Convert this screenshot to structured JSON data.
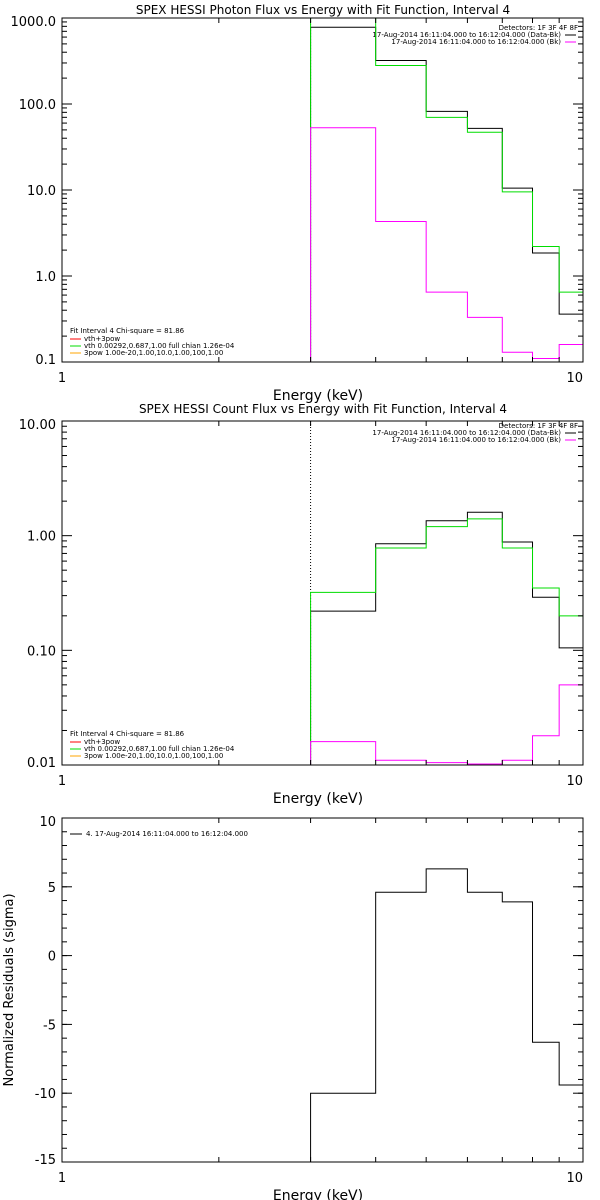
{
  "chart_data": [
    {
      "type": "line",
      "title": "SPEX HESSI Photon Flux vs Energy with Fit Function, Interval 4",
      "xlabel": "Energy (keV)",
      "ylabel": "",
      "xscale": "log",
      "yscale": "log",
      "xlim": [
        1,
        10
      ],
      "ylim": [
        0.1,
        1000
      ],
      "x_ticks": [
        1,
        10
      ],
      "x_tick_labels": [
        "1",
        "10"
      ],
      "y_ticks": [
        0.1,
        1,
        10,
        100,
        1000
      ],
      "y_tick_labels": [
        "0.1",
        "1.0",
        "10.0",
        "100.0",
        "1000.0"
      ],
      "vline": {
        "x": 3.0,
        "color": "#00c000",
        "dotted": true
      },
      "series": [
        {
          "color": "#000000",
          "edges": [
            3.0,
            4.0,
            5.0,
            6.0,
            7.0,
            8.0,
            9.0,
            10.0
          ],
          "values": [
            780,
            320,
            82,
            52,
            10.5,
            1.85,
            0.36
          ]
        },
        {
          "color": "#00dd00",
          "edges": [
            3.0,
            4.0,
            5.0,
            6.0,
            7.0,
            8.0,
            9.0,
            10.0
          ],
          "values": [
            1000,
            280,
            70,
            47,
            9.5,
            2.2,
            0.65
          ]
        },
        {
          "color": "#ff00ff",
          "edges": [
            3.0,
            4.0,
            5.0,
            6.0,
            7.0,
            8.0,
            9.0,
            10.0
          ],
          "values": [
            53,
            4.3,
            0.65,
            0.33,
            0.13,
            0.11,
            0.16
          ]
        }
      ],
      "legend_top": {
        "header": "Detectors: 1F 3F 4F 8F",
        "entries": [
          {
            "text": "17-Aug-2014 16:11:04.000 to 16:12:04.000 (Data-Bk)",
            "color": "#000000"
          },
          {
            "text": "17-Aug-2014 16:11:04.000 to 16:12:04.000 (Bk)",
            "color": "#ff00ff"
          }
        ]
      },
      "legend_bottom": {
        "header": "Fit Interval 4   Chi-square = 81.86",
        "entries": [
          {
            "text": "vth+3pow",
            "color": "#ff0000"
          },
          {
            "text": "vth 0.00292,0.687,1.00  full chian 1.26e-04",
            "color": "#00dd00"
          },
          {
            "text": "3pow 1.00e-20,1.00,10.0,1.00,100,1.00",
            "color": "#ffa500"
          }
        ]
      }
    },
    {
      "type": "line",
      "title": "SPEX HESSI Count Flux vs Energy with Fit Function, Interval 4",
      "xlabel": "Energy (keV)",
      "ylabel": "",
      "xscale": "log",
      "yscale": "log",
      "xlim": [
        1,
        10
      ],
      "ylim": [
        0.01,
        10
      ],
      "x_ticks": [
        1,
        10
      ],
      "x_tick_labels": [
        "1",
        "10"
      ],
      "y_ticks": [
        0.01,
        0.1,
        1,
        10
      ],
      "y_tick_labels": [
        "0.01",
        "0.10",
        "1.00",
        "10.00"
      ],
      "vline": {
        "x": 3.0,
        "color": "#000000",
        "dotted": true
      },
      "series": [
        {
          "color": "#000000",
          "edges": [
            3.0,
            4.0,
            5.0,
            6.0,
            7.0,
            8.0,
            9.0,
            10.0
          ],
          "values": [
            0.22,
            0.85,
            1.35,
            1.6,
            0.88,
            0.29,
            0.105
          ]
        },
        {
          "color": "#00dd00",
          "edges": [
            3.0,
            4.0,
            5.0,
            6.0,
            7.0,
            8.0,
            9.0,
            10.0
          ],
          "values": [
            0.32,
            0.78,
            1.2,
            1.4,
            0.78,
            0.35,
            0.2
          ]
        },
        {
          "color": "#ff00ff",
          "edges": [
            3.0,
            4.0,
            5.0,
            6.0,
            7.0,
            8.0,
            9.0,
            10.0
          ],
          "values": [
            0.016,
            0.011,
            0.0105,
            0.0102,
            0.011,
            0.018,
            0.05
          ]
        }
      ],
      "legend_top": {
        "header": "Detectors: 1F 3F 4F 8F",
        "entries": [
          {
            "text": "17-Aug-2014 16:11:04.000 to 16:12:04.000 (Data-Bk)",
            "color": "#000000"
          },
          {
            "text": "17-Aug-2014 16:11:04.000 to 16:12:04.000 (Bk)",
            "color": "#ff00ff"
          }
        ]
      },
      "legend_bottom": {
        "header": "Fit Interval 4   Chi-square = 81.86",
        "entries": [
          {
            "text": "vth+3pow",
            "color": "#ff0000"
          },
          {
            "text": "vth 0.00292,0.687,1.00  full chian 1.26e-04",
            "color": "#00dd00"
          },
          {
            "text": "3pow 1.00e-20,1.00,10.0,1.00,100,1.00",
            "color": "#ffa500"
          }
        ]
      }
    },
    {
      "type": "line",
      "title": "",
      "xlabel": "Energy (keV)",
      "ylabel": "Normalized Residuals (sigma)",
      "xscale": "log",
      "yscale": "linear",
      "xlim": [
        1,
        10
      ],
      "ylim": [
        -15,
        10
      ],
      "x_ticks": [
        1,
        10
      ],
      "x_tick_labels": [
        "1",
        "10"
      ],
      "y_ticks": [
        -15,
        -10,
        -5,
        0,
        5,
        10
      ],
      "y_tick_labels": [
        "-15",
        "-10",
        "-5",
        "0",
        "5",
        "10"
      ],
      "series": [
        {
          "color": "#000000",
          "edges": [
            3.0,
            4.0,
            5.0,
            6.0,
            7.0,
            8.0,
            9.0,
            10.0
          ],
          "values": [
            -10.0,
            4.6,
            6.3,
            4.6,
            3.9,
            -6.3,
            -9.4
          ],
          "lead_in_from": -15
        }
      ],
      "legend": {
        "text": "4. 17-Aug-2014 16:11:04.000 to 16:12:04.000",
        "color": "#000000"
      }
    }
  ]
}
